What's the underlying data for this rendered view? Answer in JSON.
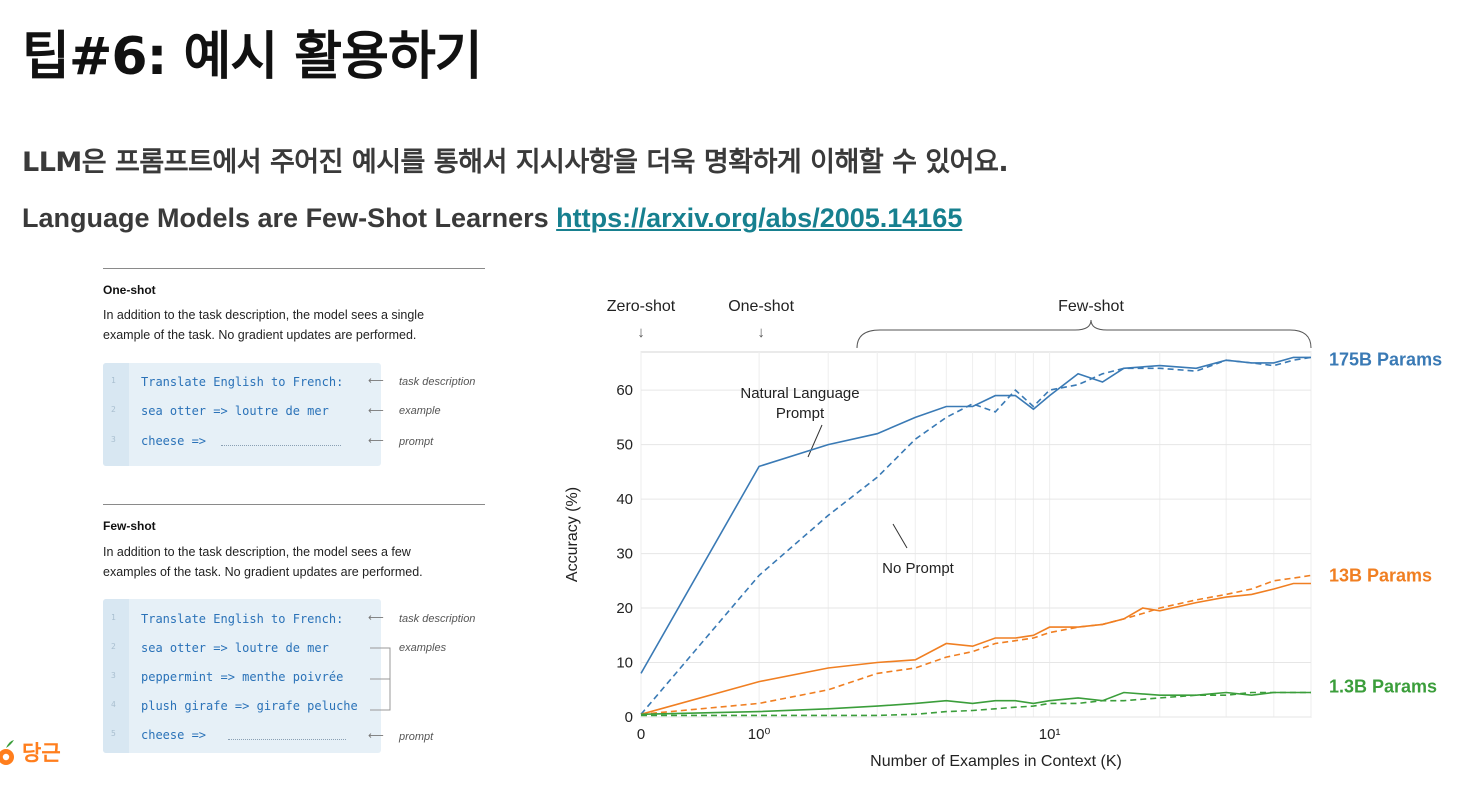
{
  "slide": {
    "title": "팁#6: 예시 활용하기",
    "subtitle": "LLM은 프롬프트에서 주어진 예시를 통해서 지시사항을 더욱 명확하게 이해할 수 있어요.",
    "paper_title": "Language Models are Few-Shot Learners",
    "paper_link": "https://arxiv.org/abs/2005.14165"
  },
  "one_shot": {
    "heading": "One-shot",
    "description": "In addition to the task description, the model sees a single example of the task. No gradient updates are performed.",
    "lines": [
      {
        "num": "1",
        "code": "Translate English to French:",
        "annotation": "task description"
      },
      {
        "num": "2",
        "code": "sea otter => loutre de mer",
        "annotation": "example"
      },
      {
        "num": "3",
        "code": "cheese =>",
        "annotation": "prompt"
      }
    ]
  },
  "few_shot": {
    "heading": "Few-shot",
    "description": "In addition to the task description, the model sees a few examples of the task. No gradient updates are performed.",
    "lines": [
      {
        "num": "1",
        "code": "Translate English to French:",
        "annotation": "task description"
      },
      {
        "num": "2",
        "code": "sea otter => loutre de mer",
        "annotation": "examples"
      },
      {
        "num": "3",
        "code": "peppermint => menthe poivrée",
        "annotation": ""
      },
      {
        "num": "4",
        "code": "plush girafe => girafe peluche",
        "annotation": ""
      },
      {
        "num": "5",
        "code": "cheese =>",
        "annotation": "prompt"
      }
    ]
  },
  "brand": {
    "name": "당근",
    "icon": "carrot-icon",
    "color": "#ff7e1d"
  },
  "chart_data": {
    "type": "line",
    "xlabel": "Number of Examples in Context  (K)",
    "ylabel": "Accuracy (%)",
    "x_scale": "symlog",
    "xlim": [
      0,
      50
    ],
    "ylim": [
      0,
      67
    ],
    "x_ticks": [
      {
        "value": 0,
        "label": "0"
      },
      {
        "value": 1,
        "label": "10⁰"
      },
      {
        "value": 10,
        "label": "10¹"
      }
    ],
    "y_ticks": [
      0,
      10,
      20,
      30,
      40,
      50,
      60
    ],
    "grid": true,
    "region_labels": [
      "Zero-shot",
      "One-shot",
      "Few-shot"
    ],
    "annotations": [
      "Natural Language\nPrompt",
      "No Prompt"
    ],
    "series": [
      {
        "name": "175B Params",
        "color": "#3a7ab5",
        "style": "solid",
        "x": [
          0,
          1,
          2,
          3,
          4,
          5,
          6,
          7,
          8,
          9,
          10,
          12,
          14,
          16,
          20,
          25,
          30,
          35,
          40,
          45,
          50
        ],
        "y": [
          8,
          46,
          50,
          52,
          55,
          57,
          57,
          59,
          59,
          56.5,
          59,
          63,
          61.5,
          64,
          64.5,
          64,
          65.5,
          65,
          65,
          66,
          66
        ]
      },
      {
        "name": "175B Params",
        "color": "#3a7ab5",
        "style": "dashed",
        "x": [
          0,
          1,
          2,
          3,
          4,
          5,
          6,
          7,
          8,
          9,
          10,
          12,
          14,
          16,
          20,
          25,
          30,
          35,
          40,
          45,
          50
        ],
        "y": [
          0.5,
          26,
          37,
          44,
          51,
          55,
          57.5,
          56,
          60,
          57,
          60,
          61,
          63,
          64,
          64,
          63.5,
          65.5,
          65,
          64.5,
          65.5,
          66
        ]
      },
      {
        "name": "13B Params",
        "color": "#f07f22",
        "style": "solid",
        "x": [
          0,
          1,
          2,
          3,
          4,
          5,
          6,
          7,
          8,
          9,
          10,
          12,
          14,
          16,
          18,
          20,
          25,
          30,
          35,
          40,
          45,
          50
        ],
        "y": [
          0.5,
          6.5,
          9,
          10,
          10.5,
          13.5,
          13,
          14.5,
          14.5,
          15,
          16.5,
          16.5,
          17,
          18,
          20,
          19.5,
          21,
          22,
          22.5,
          23.5,
          24.5,
          24.5
        ]
      },
      {
        "name": "13B Params",
        "color": "#f07f22",
        "style": "dashed",
        "x": [
          0,
          1,
          2,
          3,
          4,
          5,
          6,
          7,
          8,
          9,
          10,
          12,
          14,
          16,
          18,
          20,
          25,
          30,
          35,
          40,
          45,
          50
        ],
        "y": [
          0.5,
          2.5,
          5,
          8,
          9,
          11,
          12,
          13.5,
          14,
          14.5,
          15.5,
          16.5,
          17,
          18,
          19,
          20,
          21.5,
          22.5,
          23.5,
          25,
          25.5,
          26
        ]
      },
      {
        "name": "1.3B Params",
        "color": "#3b9e3b",
        "style": "solid",
        "x": [
          0,
          1,
          2,
          3,
          4,
          5,
          6,
          7,
          8,
          9,
          10,
          12,
          14,
          16,
          20,
          25,
          30,
          35,
          40,
          45,
          50
        ],
        "y": [
          0.5,
          1,
          1.5,
          2,
          2.5,
          3,
          2.5,
          3,
          3,
          2.5,
          3,
          3.5,
          3,
          4.5,
          4,
          4,
          4.5,
          4,
          4.5,
          4.5,
          4.5
        ]
      },
      {
        "name": "1.3B Params",
        "color": "#3b9e3b",
        "style": "dashed",
        "x": [
          0,
          1,
          2,
          3,
          4,
          5,
          6,
          7,
          8,
          9,
          10,
          12,
          14,
          16,
          20,
          25,
          30,
          35,
          40,
          45,
          50
        ],
        "y": [
          0.3,
          0.3,
          0.3,
          0.3,
          0.5,
          1,
          1.2,
          1.5,
          1.8,
          2,
          2.5,
          2.5,
          3,
          3,
          3.5,
          4,
          4,
          4.5,
          4.5,
          4.5,
          4.5
        ]
      }
    ]
  }
}
